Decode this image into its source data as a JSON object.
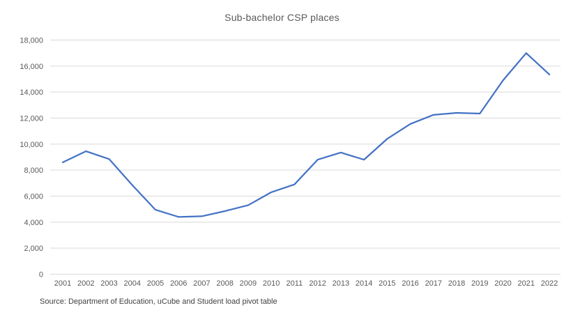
{
  "chart_data": {
    "type": "line",
    "title": "Sub-bachelor CSP places",
    "categories": [
      "2001",
      "2002",
      "2003",
      "2004",
      "2005",
      "2006",
      "2007",
      "2008",
      "2009",
      "2010",
      "2011",
      "2012",
      "2013",
      "2014",
      "2015",
      "2016",
      "2017",
      "2018",
      "2019",
      "2020",
      "2021",
      "2022"
    ],
    "values": [
      8600,
      9450,
      8850,
      6850,
      4950,
      4400,
      4450,
      4850,
      5300,
      6300,
      6900,
      8800,
      9350,
      8800,
      10400,
      11550,
      12250,
      12400,
      12350,
      14900,
      17000,
      15350
    ],
    "xlabel": "",
    "ylabel": "",
    "ylim": [
      0,
      18000
    ],
    "ytick_interval": 2000,
    "ytick_labels": [
      "0",
      "2,000",
      "4,000",
      "6,000",
      "8,000",
      "10,000",
      "12,000",
      "14,000",
      "16,000",
      "18,000"
    ],
    "grid": true,
    "legend": "none",
    "line_color": "#4472C4",
    "gridline_color": "#d9d9d9",
    "axis_label_color": "#595959",
    "title_color": "#595959",
    "source_note": "Source: Department of Education, uCube and Student load pivot table"
  }
}
